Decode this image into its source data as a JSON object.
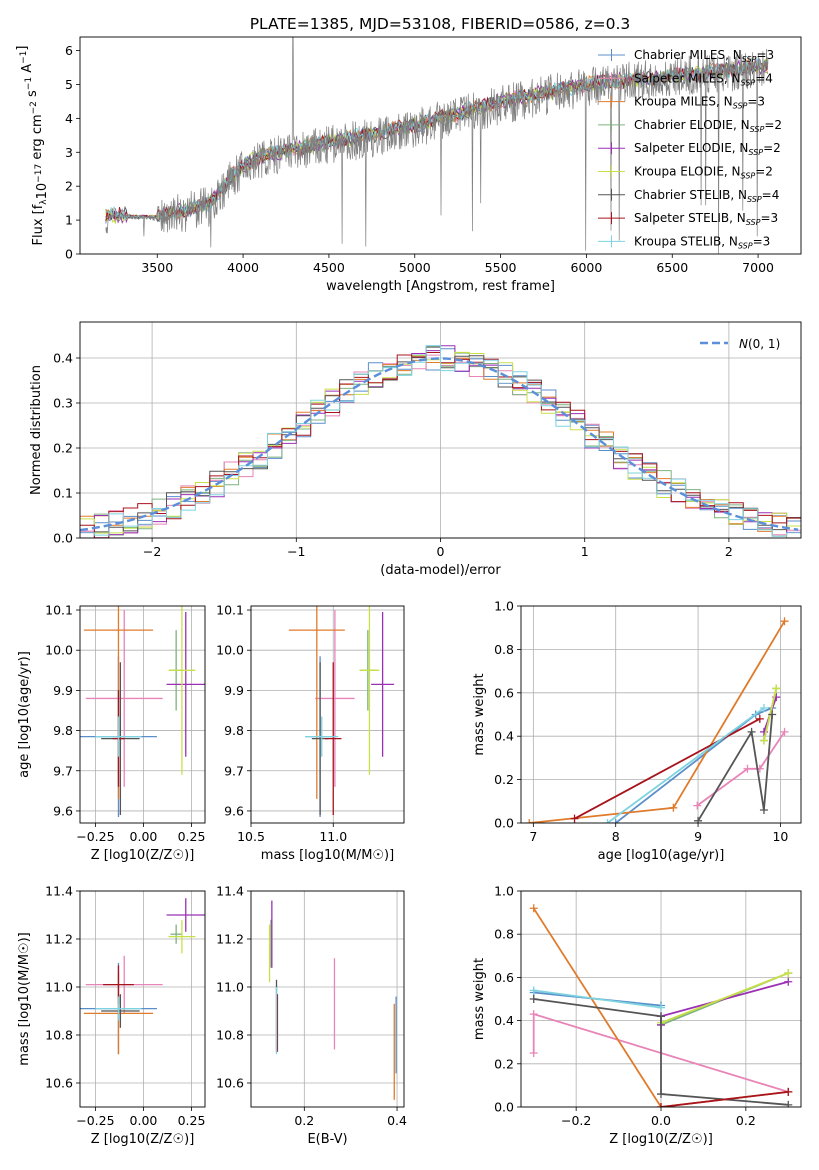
{
  "figure": {
    "title": "PLATE=1385, MJD=53108, FIBERID=0586, z=0.3",
    "models": [
      {
        "name": "Chabrier MILES, N$_{SSP}$=3",
        "label": "Chabrier MILES, N",
        "sub": "SSP",
        "tail": "=3",
        "color": "#5b8fc9"
      },
      {
        "name": "Salpeter MILES, N$_{SSP}$=4",
        "label": "Salpeter MILES, N",
        "sub": "SSP",
        "tail": "=4",
        "color": "#e884b8"
      },
      {
        "name": "Kroupa MILES, N$_{SSP}$=3",
        "label": "Kroupa MILES, N",
        "sub": "SSP",
        "tail": "=3",
        "color": "#e07b2c"
      },
      {
        "name": "Chabrier ELODIE, N$_{SSP}$=2",
        "label": "Chabrier ELODIE, N",
        "sub": "SSP",
        "tail": "=2",
        "color": "#7fb27f"
      },
      {
        "name": "Salpeter ELODIE, N$_{SSP}$=2",
        "label": "Salpeter ELODIE, N",
        "sub": "SSP",
        "tail": "=2",
        "color": "#9b30b5"
      },
      {
        "name": "Kroupa ELODIE, N$_{SSP}$=2",
        "label": "Kroupa ELODIE, N",
        "sub": "SSP",
        "tail": "=2",
        "color": "#c8e048"
      },
      {
        "name": "Chabrier STELIB, N$_{SSP}$=4",
        "label": "Chabrier STELIB, N",
        "sub": "SSP",
        "tail": "=4",
        "color": "#555555"
      },
      {
        "name": "Salpeter STELIB, N$_{SSP}$=3",
        "label": "Salpeter STELIB, N",
        "sub": "SSP",
        "tail": "=3",
        "color": "#a8141e"
      },
      {
        "name": "Kroupa STELIB, N$_{SSP}$=3",
        "label": "Kroupa STELIB, N",
        "sub": "SSP",
        "tail": "=3",
        "color": "#7dd3df"
      }
    ],
    "data_color": "#808080",
    "normal_color": "#5b8fd9"
  },
  "chart_data": [
    {
      "id": "spectrum",
      "type": "line",
      "title": "PLATE=1385, MJD=53108, FIBERID=0586, z=0.3",
      "xlabel": "wavelength [Angstrom, rest frame]",
      "ylabel": "Flux [f_λ 10^-17 erg cm^-2 s^-1 A^-1]",
      "xlim": [
        3050,
        7250
      ],
      "ylim": [
        0,
        6.4
      ],
      "xticks": [
        3500,
        4000,
        4500,
        5000,
        5500,
        6000,
        6500,
        7000
      ],
      "yticks": [
        0,
        1,
        2,
        3,
        4,
        5,
        6
      ],
      "legend": "right",
      "grid": false,
      "data_trend": {
        "x": [
          3200,
          3500,
          3800,
          3950,
          4100,
          4500,
          5000,
          5500,
          6000,
          6500,
          7050
        ],
        "y": [
          1.15,
          1.05,
          1.4,
          2.3,
          2.8,
          3.2,
          3.7,
          4.4,
          4.95,
          5.2,
          5.5
        ]
      },
      "model_trend": {
        "x": [
          3200,
          3500,
          3800,
          3950,
          4100,
          4500,
          5000,
          5500,
          6000,
          6500,
          7050
        ],
        "y": [
          1.15,
          1.1,
          1.45,
          2.4,
          2.9,
          3.3,
          3.8,
          4.5,
          5.0,
          5.25,
          5.55
        ]
      }
    },
    {
      "id": "residuals",
      "type": "line",
      "xlabel": "(data-model)/error",
      "ylabel": "Normed distribution",
      "xlim": [
        -2.5,
        2.5
      ],
      "ylim": [
        0,
        0.48
      ],
      "xticks": [
        -2,
        -1,
        0,
        1,
        2
      ],
      "yticks": [
        0.0,
        0.1,
        0.2,
        0.3,
        0.4
      ],
      "legend": "top-right",
      "legend_label": "N(0,1)",
      "grid": true,
      "series": [
        {
          "name": "N(0,1)",
          "mu": 0,
          "sigma": 1
        }
      ]
    },
    {
      "id": "age-vs-Z",
      "type": "scatter",
      "xlabel": "Z [log10(Z/Z☉)]",
      "ylabel": "age [log10(age/yr)]",
      "xlim": [
        -0.33,
        0.32
      ],
      "ylim": [
        9.57,
        10.11
      ],
      "xticks": [
        -0.25,
        0.0,
        0.25
      ],
      "yticks": [
        9.6,
        9.7,
        9.8,
        9.9,
        10.0,
        10.1
      ],
      "grid": true,
      "points": [
        {
          "model": 0,
          "x": -0.13,
          "xerr": 0.2,
          "y": 9.785,
          "yerr": 0.2
        },
        {
          "model": 1,
          "x": -0.1,
          "xerr": 0.2,
          "y": 9.88,
          "yerr": 0.22
        },
        {
          "model": 2,
          "x": -0.13,
          "xerr": 0.18,
          "y": 10.05,
          "yerr": 0.42
        },
        {
          "model": 3,
          "x": 0.17,
          "xerr": 0.03,
          "y": 9.95,
          "yerr": 0.1
        },
        {
          "model": 4,
          "x": 0.22,
          "xerr": 0.1,
          "y": 9.915,
          "yerr": 0.18
        },
        {
          "model": 5,
          "x": 0.2,
          "xerr": 0.07,
          "y": 9.95,
          "yerr": 0.26
        },
        {
          "model": 6,
          "x": -0.12,
          "xerr": 0.1,
          "y": 9.78,
          "yerr": 0.19
        },
        {
          "model": 7,
          "x": -0.13,
          "xerr": 0.03,
          "y": 9.78,
          "yerr": 0.12
        },
        {
          "model": 8,
          "x": -0.13,
          "xerr": 0.12,
          "y": 9.785,
          "yerr": 0.05
        }
      ]
    },
    {
      "id": "age-vs-mass",
      "type": "scatter",
      "xlabel": "mass [log10(M/M☉)]",
      "ylabel": "",
      "xlim": [
        10.5,
        11.43
      ],
      "ylim": [
        9.57,
        10.11
      ],
      "xticks": [
        10.5,
        11.0
      ],
      "yticks": [
        9.6,
        9.7,
        9.8,
        9.9,
        10.0,
        10.1
      ],
      "grid": true,
      "points": [
        {
          "model": 0,
          "x": 10.92,
          "xerr": 0.09,
          "y": 9.785,
          "yerr": 0.2
        },
        {
          "model": 1,
          "x": 11.01,
          "xerr": 0.12,
          "y": 9.88,
          "yerr": 0.22
        },
        {
          "model": 2,
          "x": 10.9,
          "xerr": 0.17,
          "y": 10.05,
          "yerr": 0.42
        },
        {
          "model": 3,
          "x": 11.21,
          "xerr": 0.05,
          "y": 9.95,
          "yerr": 0.1
        },
        {
          "model": 4,
          "x": 11.3,
          "xerr": 0.07,
          "y": 9.915,
          "yerr": 0.18
        },
        {
          "model": 5,
          "x": 11.22,
          "xerr": 0.06,
          "y": 9.95,
          "yerr": 0.26
        },
        {
          "model": 6,
          "x": 10.92,
          "xerr": 0.05,
          "y": 9.78,
          "yerr": 0.19
        },
        {
          "model": 7,
          "x": 11.0,
          "xerr": 0.05,
          "y": 9.78,
          "yerr": 0.19
        },
        {
          "model": 8,
          "x": 10.93,
          "xerr": 0.1,
          "y": 9.785,
          "yerr": 0.05
        }
      ]
    },
    {
      "id": "weight-vs-age",
      "type": "line",
      "xlabel": "age [log10(age/yr)]",
      "ylabel": "mass weight",
      "xlim": [
        6.85,
        10.25
      ],
      "ylim": [
        0,
        1.0
      ],
      "xticks": [
        7,
        8,
        9,
        10
      ],
      "yticks": [
        0.0,
        0.2,
        0.4,
        0.6,
        0.8,
        1.0
      ],
      "grid": true,
      "series": [
        {
          "model": 0,
          "x": [
            8.0,
            9.7,
            9.9
          ],
          "y": [
            0.0,
            0.5,
            0.53
          ]
        },
        {
          "model": 1,
          "x": [
            8.99,
            9.6,
            9.75,
            10.05
          ],
          "y": [
            0.08,
            0.25,
            0.25,
            0.42
          ]
        },
        {
          "model": 2,
          "x": [
            6.95,
            8.7,
            10.05
          ],
          "y": [
            0.0,
            0.07,
            0.93
          ]
        },
        {
          "model": 3,
          "x": [
            9.8,
            9.95
          ],
          "y": [
            0.38,
            0.62
          ]
        },
        {
          "model": 4,
          "x": [
            9.8,
            9.95
          ],
          "y": [
            0.42,
            0.58
          ]
        },
        {
          "model": 5,
          "x": [
            9.8,
            9.95
          ],
          "y": [
            0.38,
            0.62
          ]
        },
        {
          "model": 6,
          "x": [
            9.0,
            9.65,
            9.8,
            9.9
          ],
          "y": [
            0.01,
            0.42,
            0.06,
            0.5
          ]
        },
        {
          "model": 7,
          "x": [
            7.5,
            9.75
          ],
          "y": [
            0.02,
            0.48
          ]
        },
        {
          "model": 8,
          "x": [
            7.9,
            9.8
          ],
          "y": [
            0.0,
            0.53
          ]
        }
      ]
    },
    {
      "id": "mass-vs-Z",
      "type": "scatter",
      "xlabel": "Z [log10(Z/Z☉)]",
      "ylabel": "mass [log10(M/M☉)]",
      "xlim": [
        -0.33,
        0.32
      ],
      "ylim": [
        10.5,
        11.4
      ],
      "xticks": [
        -0.25,
        0.0,
        0.25
      ],
      "yticks": [
        10.6,
        10.8,
        11.0,
        11.2,
        11.4
      ],
      "grid": true,
      "points": [
        {
          "model": 0,
          "x": -0.13,
          "xerr": 0.2,
          "y": 10.91,
          "yerr": 0.19
        },
        {
          "model": 1,
          "x": -0.1,
          "xerr": 0.2,
          "y": 11.01,
          "yerr": 0.12
        },
        {
          "model": 2,
          "x": -0.13,
          "xerr": 0.18,
          "y": 10.89,
          "yerr": 0.17
        },
        {
          "model": 3,
          "x": 0.17,
          "xerr": 0.03,
          "y": 11.22,
          "yerr": 0.04
        },
        {
          "model": 4,
          "x": 0.22,
          "xerr": 0.1,
          "y": 11.3,
          "yerr": 0.07
        },
        {
          "model": 5,
          "x": 0.2,
          "xerr": 0.07,
          "y": 11.21,
          "yerr": 0.07
        },
        {
          "model": 6,
          "x": -0.12,
          "xerr": 0.1,
          "y": 10.9,
          "yerr": 0.07
        },
        {
          "model": 7,
          "x": -0.13,
          "xerr": 0.08,
          "y": 11.01,
          "yerr": 0.08
        },
        {
          "model": 8,
          "x": -0.13,
          "xerr": 0.12,
          "y": 10.91,
          "yerr": 0.05
        }
      ]
    },
    {
      "id": "mass-vs-ebv",
      "type": "scatter",
      "xlabel": "E(B-V)",
      "ylabel": "",
      "xlim": [
        0.085,
        0.415
      ],
      "ylim": [
        10.5,
        11.4
      ],
      "xticks": [
        0.2,
        0.4
      ],
      "yticks": [
        10.6,
        10.8,
        11.0,
        11.2,
        11.4
      ],
      "grid": true,
      "points": [
        {
          "model": 0,
          "x": 0.398,
          "xerr": 0,
          "y": 10.8,
          "yerr": 0.16
        },
        {
          "model": 1,
          "x": 0.265,
          "xerr": 0,
          "y": 10.93,
          "yerr": 0.19
        },
        {
          "model": 2,
          "x": 0.394,
          "xerr": 0,
          "y": 10.73,
          "yerr": 0.2
        },
        {
          "model": 3,
          "x": 0.128,
          "xerr": 0,
          "y": 11.18,
          "yerr": 0.1
        },
        {
          "model": 4,
          "x": 0.13,
          "xerr": 0,
          "y": 11.22,
          "yerr": 0.14
        },
        {
          "model": 5,
          "x": 0.125,
          "xerr": 0,
          "y": 11.14,
          "yerr": 0.12
        },
        {
          "model": 6,
          "x": 0.14,
          "xerr": 0,
          "y": 10.88,
          "yerr": 0.15
        },
        {
          "model": 7,
          "x": 0.142,
          "xerr": 0,
          "y": 10.85,
          "yerr": 0.12
        },
        {
          "model": 8,
          "x": 0.14,
          "xerr": 0,
          "y": 10.86,
          "yerr": 0.14
        }
      ]
    },
    {
      "id": "weight-vs-Z",
      "type": "line",
      "xlabel": "Z [log10(Z/Z☉)]",
      "ylabel": "mass weight",
      "xlim": [
        -0.33,
        0.33
      ],
      "ylim": [
        0,
        1.0
      ],
      "xticks": [
        -0.2,
        0.0,
        0.2
      ],
      "yticks": [
        0.0,
        0.2,
        0.4,
        0.6,
        0.8,
        1.0
      ],
      "grid": true,
      "series": [
        {
          "model": 0,
          "x": [
            -0.3,
            0.0
          ],
          "y": [
            0.53,
            0.47
          ]
        },
        {
          "model": 1,
          "x": [
            -0.3,
            -0.3,
            0.3
          ],
          "y": [
            0.25,
            0.43,
            0.07
          ]
        },
        {
          "model": 2,
          "x": [
            -0.3,
            0.0,
            0.3
          ],
          "y": [
            0.92,
            0.0,
            0.07
          ]
        },
        {
          "model": 3,
          "x": [
            0.0,
            0.3
          ],
          "y": [
            0.38,
            0.62
          ]
        },
        {
          "model": 4,
          "x": [
            0.0,
            0.0,
            0.3
          ],
          "y": [
            0.38,
            0.42,
            0.58
          ]
        },
        {
          "model": 5,
          "x": [
            0.0,
            0.3
          ],
          "y": [
            0.39,
            0.62
          ]
        },
        {
          "model": 6,
          "x": [
            -0.3,
            0.0,
            0.0,
            0.3
          ],
          "y": [
            0.5,
            0.42,
            0.06,
            0.01
          ]
        },
        {
          "model": 7,
          "x": [
            0.0,
            0.3
          ],
          "y": [
            0.0,
            0.07
          ]
        },
        {
          "model": 8,
          "x": [
            -0.3,
            0.0
          ],
          "y": [
            0.54,
            0.46
          ]
        }
      ]
    }
  ]
}
